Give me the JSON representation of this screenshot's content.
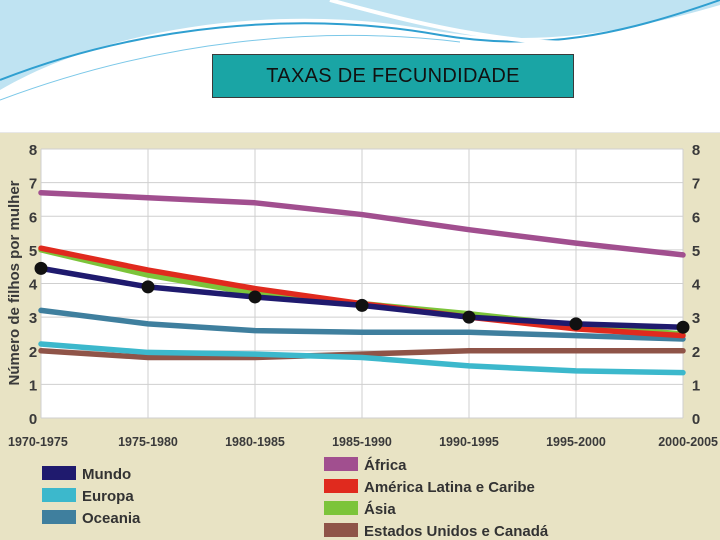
{
  "slide": {
    "title": "TAXAS DE FECUNDIDADE"
  },
  "colors": {
    "chart_bg": "#e8e3c4",
    "plot_bg": "#ffffff",
    "grid": "#cfcfcf",
    "header_swoosh": "#3aaed8",
    "title_box": "#1aa5a5"
  },
  "chart_data": {
    "type": "line",
    "title": "",
    "ylabel": "Número de filhos por mulher",
    "xlabel": "",
    "ylim": [
      0,
      8
    ],
    "yticks": [
      "0",
      "1",
      "2",
      "3",
      "4",
      "5",
      "6",
      "7",
      "8"
    ],
    "grid": true,
    "legend_position": "bottom",
    "categories": [
      "1970-1975",
      "1975-1980",
      "1980-1985",
      "1985-1990",
      "1990-1995",
      "1995-2000",
      "2000-2005"
    ],
    "series": [
      {
        "name": "Mundo",
        "color": "#1f1a6e",
        "markers": true,
        "values": [
          4.45,
          3.9,
          3.6,
          3.35,
          3.0,
          2.8,
          2.7
        ]
      },
      {
        "name": "Europa",
        "color": "#3cb8cc",
        "values": [
          2.2,
          1.95,
          1.9,
          1.8,
          1.55,
          1.4,
          1.35
        ]
      },
      {
        "name": "Oceania",
        "color": "#3f7f9e",
        "values": [
          3.2,
          2.8,
          2.6,
          2.55,
          2.55,
          2.45,
          2.35
        ]
      },
      {
        "name": "África",
        "color": "#a14f8f",
        "values": [
          6.7,
          6.55,
          6.4,
          6.05,
          5.6,
          5.2,
          4.85
        ]
      },
      {
        "name": "América Latina e Caribe",
        "color": "#e02a1e",
        "values": [
          5.05,
          4.4,
          3.85,
          3.4,
          3.0,
          2.65,
          2.45
        ]
      },
      {
        "name": "Ásia",
        "color": "#7cc43a",
        "values": [
          5.0,
          4.25,
          3.7,
          3.4,
          3.1,
          2.75,
          2.5
        ]
      },
      {
        "name": "Estados Unidos e Canadá",
        "color": "#8f5448",
        "values": [
          2.0,
          1.8,
          1.8,
          1.9,
          2.0,
          2.0,
          2.0
        ]
      }
    ]
  }
}
